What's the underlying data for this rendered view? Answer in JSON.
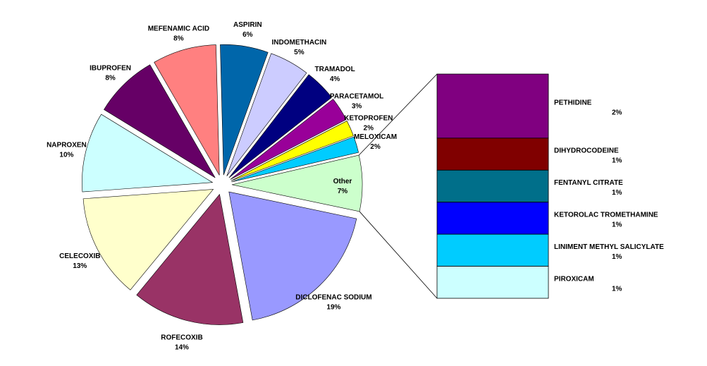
{
  "chart_data": {
    "type": "pie-of-bar",
    "pie": {
      "labels": [
        "MEFENAMIC ACID",
        "ASPIRIN",
        "INDOMETHACIN",
        "TRAMADOL",
        "PARACETAMOL",
        "KETOPROFEN",
        "MELOXICAM",
        "Other",
        "DICLOFENAC SODIUM",
        "ROFECOXIB",
        "CELECOXIB",
        "NAPROXEN",
        "IBUPROFEN"
      ],
      "values": [
        8,
        6,
        5,
        4,
        3,
        2,
        2,
        7,
        19,
        14,
        13,
        10,
        8
      ],
      "value_labels": [
        "8%",
        "6%",
        "5%",
        "4%",
        "3%",
        "2%",
        "2%",
        "7%",
        "19%",
        "14%",
        "13%",
        "10%",
        "8%"
      ],
      "colors": [
        "#ff8080",
        "#0066aa",
        "#ccccff",
        "#000080",
        "#990099",
        "#ffff00",
        "#00ccff",
        "#ccffcc",
        "#9999ff",
        "#993366",
        "#ffffcc",
        "#ccffff",
        "#660066"
      ]
    },
    "bar": {
      "labels": [
        "PETHIDINE",
        "DIHYDROCODEINE",
        "FENTANYL CITRATE",
        "KETOROLAC TROMETHAMINE",
        "LINIMENT METHYL SALICYLATE",
        "PIROXICAM"
      ],
      "values": [
        2,
        1,
        1,
        1,
        1,
        1
      ],
      "value_labels": [
        "2%",
        "1%",
        "1%",
        "1%",
        "1%",
        "1%"
      ],
      "colors": [
        "#800080",
        "#800000",
        "#006f8a",
        "#0000ff",
        "#00ccff",
        "#ccffff"
      ]
    }
  }
}
